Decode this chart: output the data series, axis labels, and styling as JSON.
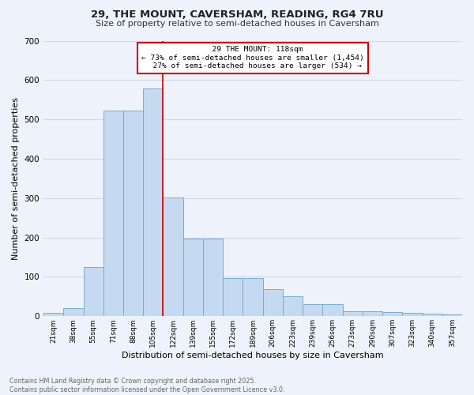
{
  "title_line1": "29, THE MOUNT, CAVERSHAM, READING, RG4 7RU",
  "title_line2": "Size of property relative to semi-detached houses in Caversham",
  "xlabel": "Distribution of semi-detached houses by size in Caversham",
  "ylabel": "Number of semi-detached properties",
  "categories": [
    "21sqm",
    "38sqm",
    "55sqm",
    "71sqm",
    "88sqm",
    "105sqm",
    "122sqm",
    "139sqm",
    "155sqm",
    "172sqm",
    "189sqm",
    "206sqm",
    "223sqm",
    "239sqm",
    "256sqm",
    "273sqm",
    "290sqm",
    "307sqm",
    "323sqm",
    "340sqm",
    "357sqm"
  ],
  "values": [
    8,
    20,
    125,
    522,
    522,
    578,
    302,
    197,
    197,
    97,
    97,
    68,
    50,
    30,
    30,
    13,
    12,
    10,
    8,
    7,
    5
  ],
  "bar_color": "#c5d9f0",
  "bar_edge_color": "#7aadce",
  "annotation_box_color": "#cc0000",
  "background_color": "#eef2fb",
  "grid_color": "#d0d8e8",
  "property_label": "29 THE MOUNT: 118sqm",
  "pct_smaller": 73,
  "n_smaller": 1454,
  "pct_larger": 27,
  "n_larger": 534,
  "vline_pos": 6.5,
  "footer_line1": "Contains HM Land Registry data © Crown copyright and database right 2025.",
  "footer_line2": "Contains public sector information licensed under the Open Government Licence v3.0.",
  "ylim": [
    0,
    700
  ],
  "yticks": [
    0,
    100,
    200,
    300,
    400,
    500,
    600,
    700
  ]
}
